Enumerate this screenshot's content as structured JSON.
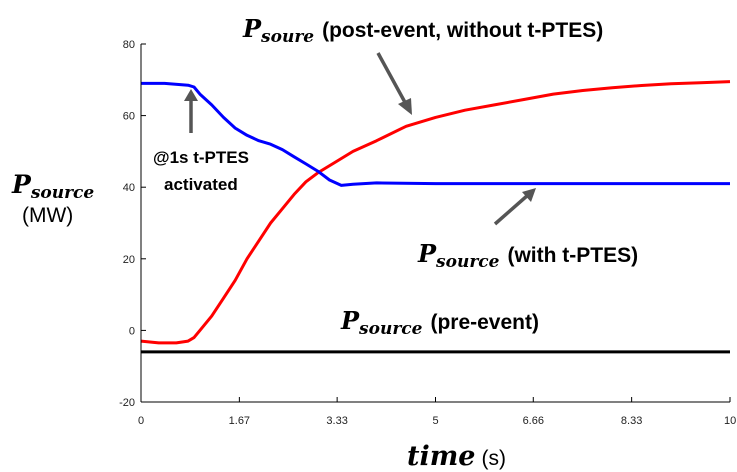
{
  "chart_data": {
    "type": "line",
    "xlabel": {
      "symbol": "time",
      "unit": "(s)"
    },
    "ylabel": {
      "symbol": "P",
      "subscript": "source",
      "unit": "(MW)"
    },
    "xlim": [
      0,
      10
    ],
    "ylim": [
      -20,
      80
    ],
    "x_ticks": [
      "0",
      "1.67",
      "3.33",
      "5",
      "6.66",
      "8.33",
      "10"
    ],
    "x_tick_values": [
      0,
      1.67,
      3.33,
      5,
      6.66,
      8.33,
      10
    ],
    "y_ticks": [
      "-20",
      "0",
      "20",
      "40",
      "60",
      "80"
    ],
    "y_tick_values": [
      -20,
      0,
      20,
      40,
      60,
      80
    ],
    "grid": false,
    "series": [
      {
        "color": "#ff0000",
        "x": [
          0,
          0.3,
          0.6,
          0.8,
          0.9,
          1.0,
          1.2,
          1.4,
          1.6,
          1.8,
          2.0,
          2.2,
          2.4,
          2.6,
          2.8,
          3.0,
          3.3,
          3.6,
          4.0,
          4.5,
          5.0,
          5.5,
          6.0,
          6.5,
          7.0,
          7.5,
          8.0,
          8.5,
          9.0,
          9.5,
          10.0
        ],
        "y": [
          -3,
          -3.5,
          -3.5,
          -3,
          -2,
          0,
          4,
          9,
          14,
          20,
          25,
          30,
          34,
          38,
          41.5,
          44,
          47,
          50,
          53,
          57,
          59.5,
          61.5,
          63,
          64.5,
          66,
          67,
          67.8,
          68.4,
          68.9,
          69.2,
          69.5
        ]
      },
      {
        "color": "#0000ff",
        "x": [
          0,
          0.4,
          0.8,
          0.9,
          1.0,
          1.2,
          1.4,
          1.6,
          1.8,
          2.0,
          2.2,
          2.4,
          2.6,
          2.8,
          3.0,
          3.2,
          3.4,
          3.6,
          4.0,
          5.0,
          6.0,
          7.0,
          8.0,
          9.0,
          10.0
        ],
        "y": [
          69,
          69,
          68.5,
          68,
          66,
          63,
          59.5,
          56.5,
          54.5,
          53,
          52,
          50.5,
          48.5,
          46.5,
          44.5,
          42,
          40.5,
          40.8,
          41.2,
          41,
          41,
          41,
          41,
          41,
          41
        ]
      },
      {
        "color": "#000000",
        "x": [
          0,
          10
        ],
        "y": [
          -6,
          -6
        ]
      }
    ],
    "annotations": {
      "post_event": {
        "symbol": "P",
        "subscript": "soure",
        "text": "(post-event, without t-PTES)"
      },
      "with_ptes": {
        "symbol": "P",
        "subscript": "source",
        "text": "(with t-PTES)"
      },
      "pre_event": {
        "symbol": "P",
        "subscript": "source",
        "text": "(pre-event)"
      },
      "activation_line1": "@1s t-PTES",
      "activation_line2": "activated"
    }
  }
}
